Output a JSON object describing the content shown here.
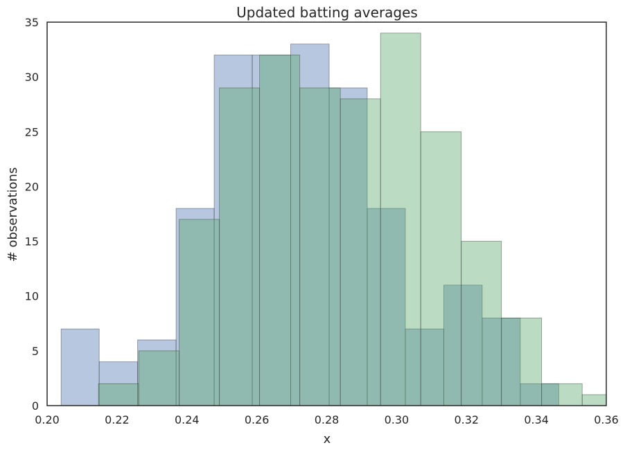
{
  "chart_data": {
    "type": "bar",
    "subtype": "histogram-overlay",
    "title": "Updated batting averages",
    "xlabel": "x",
    "ylabel": "# observations",
    "xlim": [
      0.2,
      0.36
    ],
    "ylim": [
      0,
      35
    ],
    "xticks": [
      "0.20",
      "0.22",
      "0.24",
      "0.26",
      "0.28",
      "0.30",
      "0.32",
      "0.34",
      "0.36"
    ],
    "yticks": [
      "0",
      "5",
      "10",
      "15",
      "20",
      "25",
      "30",
      "35"
    ],
    "grid": false,
    "legend": "none",
    "series": [
      {
        "color": "#4c72b0",
        "opacity": 0.4,
        "bins": [
          {
            "x0": 0.204,
            "x1": 0.2149,
            "y": 7
          },
          {
            "x0": 0.2149,
            "x1": 0.2259,
            "y": 4
          },
          {
            "x0": 0.2259,
            "x1": 0.2369,
            "y": 6
          },
          {
            "x0": 0.2369,
            "x1": 0.2478,
            "y": 18
          },
          {
            "x0": 0.2478,
            "x1": 0.2587,
            "y": 32
          },
          {
            "x0": 0.2587,
            "x1": 0.2697,
            "y": 32
          },
          {
            "x0": 0.2697,
            "x1": 0.2807,
            "y": 33
          },
          {
            "x0": 0.2807,
            "x1": 0.2916,
            "y": 29
          },
          {
            "x0": 0.2916,
            "x1": 0.3025,
            "y": 18
          },
          {
            "x0": 0.3025,
            "x1": 0.3135,
            "y": 7
          },
          {
            "x0": 0.3135,
            "x1": 0.3245,
            "y": 11
          },
          {
            "x0": 0.3245,
            "x1": 0.3354,
            "y": 8
          },
          {
            "x0": 0.3354,
            "x1": 0.3464,
            "y": 2
          }
        ]
      },
      {
        "color": "#55a868",
        "opacity": 0.4,
        "bins": [
          {
            "x0": 0.2147,
            "x1": 0.2262,
            "y": 2
          },
          {
            "x0": 0.2262,
            "x1": 0.2378,
            "y": 5
          },
          {
            "x0": 0.2378,
            "x1": 0.2493,
            "y": 17
          },
          {
            "x0": 0.2493,
            "x1": 0.2608,
            "y": 29
          },
          {
            "x0": 0.2608,
            "x1": 0.2723,
            "y": 32
          },
          {
            "x0": 0.2723,
            "x1": 0.2839,
            "y": 29
          },
          {
            "x0": 0.2839,
            "x1": 0.2954,
            "y": 28
          },
          {
            "x0": 0.2954,
            "x1": 0.3069,
            "y": 34
          },
          {
            "x0": 0.3069,
            "x1": 0.3185,
            "y": 25
          },
          {
            "x0": 0.3185,
            "x1": 0.33,
            "y": 15
          },
          {
            "x0": 0.33,
            "x1": 0.3415,
            "y": 8
          },
          {
            "x0": 0.3415,
            "x1": 0.3531,
            "y": 2
          },
          {
            "x0": 0.3531,
            "x1": 0.3646,
            "y": 1
          }
        ]
      }
    ]
  }
}
